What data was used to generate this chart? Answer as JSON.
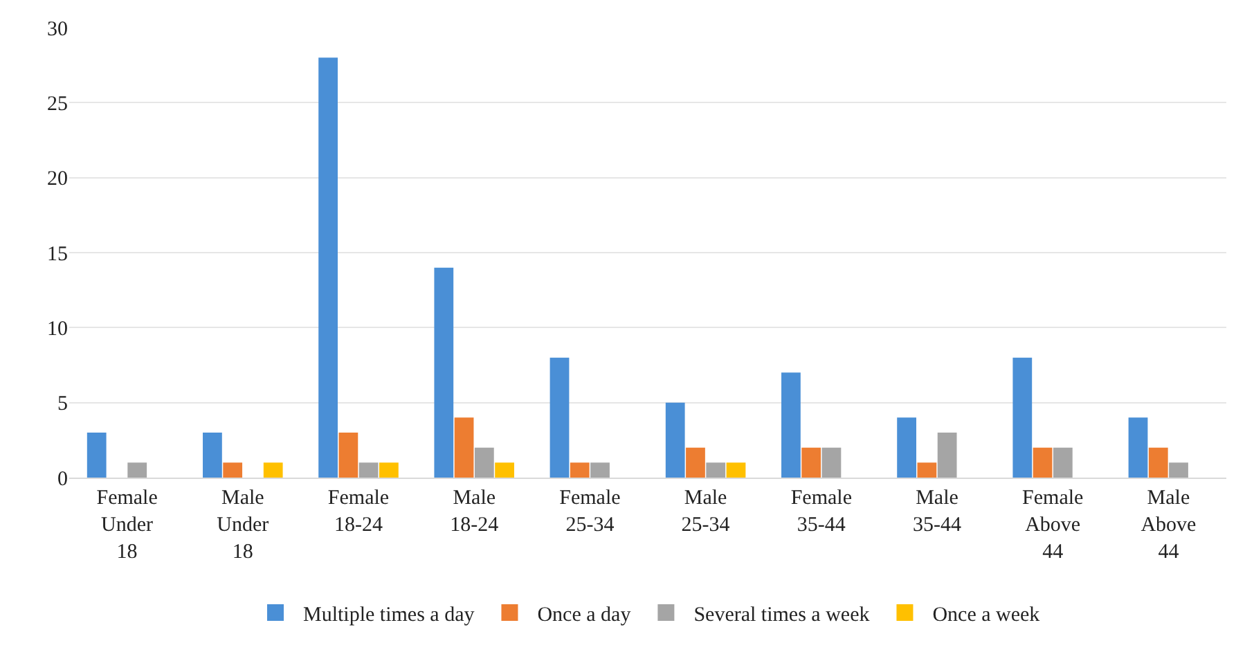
{
  "chart_data": {
    "type": "bar",
    "categories": [
      "Female\nUnder\n18",
      "Male\nUnder\n18",
      "Female\n18-24",
      "Male\n18-24",
      "Female\n25-34",
      "Male\n25-34",
      "Female\n35-44",
      "Male\n35-44",
      "Female\nAbove\n44",
      "Male\nAbove\n44"
    ],
    "series": [
      {
        "name": "Multiple times a day",
        "color": "#4a8fd6",
        "values": [
          3,
          3,
          28,
          14,
          8,
          5,
          7,
          4,
          8,
          4
        ]
      },
      {
        "name": "Once a day",
        "color": "#ed7d31",
        "values": [
          0,
          1,
          3,
          4,
          1,
          2,
          2,
          1,
          2,
          2
        ]
      },
      {
        "name": "Several times a week",
        "color": "#a5a5a5",
        "values": [
          1,
          0,
          1,
          2,
          1,
          1,
          2,
          3,
          2,
          1
        ]
      },
      {
        "name": "Once a week",
        "color": "#ffc000",
        "values": [
          0,
          1,
          1,
          1,
          0,
          1,
          0,
          0,
          0,
          0
        ]
      }
    ],
    "ylim": [
      0,
      30
    ],
    "yticks": [
      0,
      5,
      10,
      15,
      20,
      25,
      30
    ],
    "grid": "y",
    "legend": "bottom"
  }
}
